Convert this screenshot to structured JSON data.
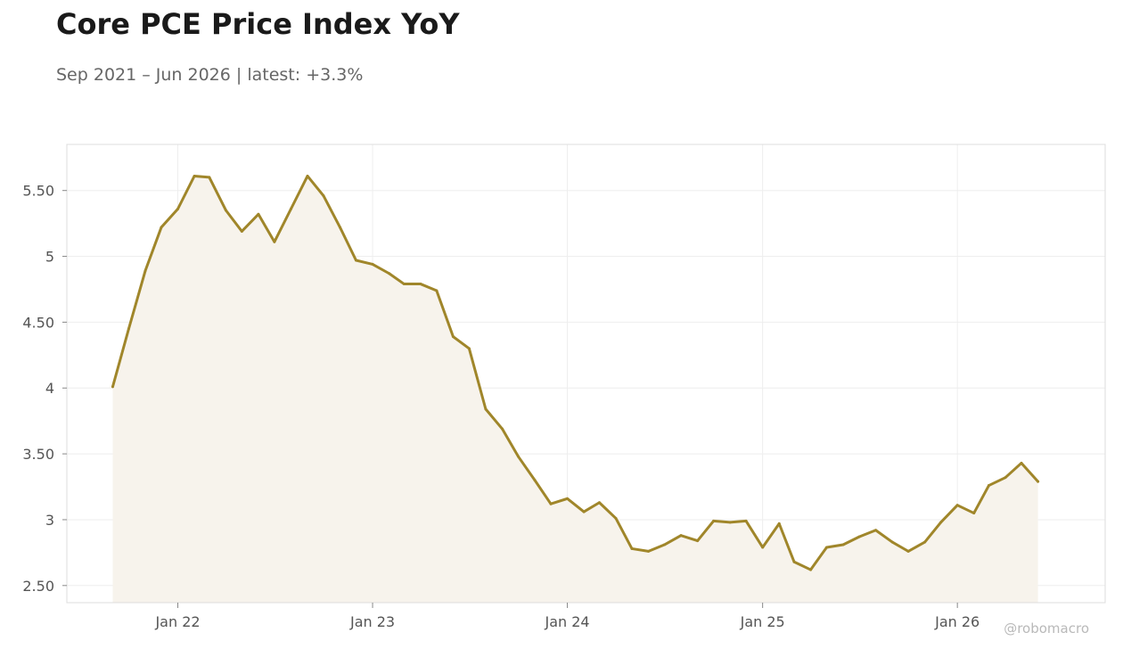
{
  "title": "Core PCE Price Index YoY",
  "subtitle": "Sep 2021 – Jun 2026 | latest: +3.3%",
  "credit": "@robomacro",
  "colors": {
    "line": "#a0862a",
    "fill": "#f7f3ec",
    "grid": "#eeeeee",
    "frame": "#dddddd"
  },
  "chart_data": {
    "type": "area",
    "title": "Core PCE Price Index YoY",
    "xlabel": "",
    "ylabel": "",
    "ylim": [
      2.37,
      5.85
    ],
    "xlim": [
      "2021-06-07",
      "2026-10-05"
    ],
    "grid": true,
    "legend": "none",
    "yticks": [
      2.5,
      3,
      3.5,
      4,
      4.5,
      5,
      5.5
    ],
    "ytick_labels": [
      "2.50",
      "3",
      "3.50",
      "4",
      "4.50",
      "5",
      "5.50"
    ],
    "xticks": [
      "2022-01-01",
      "2023-01-01",
      "2024-01-01",
      "2025-01-01",
      "2026-01-01"
    ],
    "xtick_labels": [
      "Jan 22",
      "Jan 23",
      "Jan 24",
      "Jan 25",
      "Jan 26"
    ],
    "series": [
      {
        "x": [
          "2021-09",
          "2021-10",
          "2021-11",
          "2021-12",
          "2022-01",
          "2022-02",
          "2022-03",
          "2022-04",
          "2022-05",
          "2022-06",
          "2022-07",
          "2022-08",
          "2022-09",
          "2022-10",
          "2022-11",
          "2022-12",
          "2023-01",
          "2023-02",
          "2023-03",
          "2023-04",
          "2023-05",
          "2023-06",
          "2023-07",
          "2023-08",
          "2023-09",
          "2023-10",
          "2023-11",
          "2023-12",
          "2024-01",
          "2024-02",
          "2024-03",
          "2024-04",
          "2024-05",
          "2024-06",
          "2024-07",
          "2024-08",
          "2024-09",
          "2024-10",
          "2024-11",
          "2024-12",
          "2025-01",
          "2025-02",
          "2025-03",
          "2025-04",
          "2025-05",
          "2025-06",
          "2025-07",
          "2025-08",
          "2025-09",
          "2025-10",
          "2025-11",
          "2025-12",
          "2026-01",
          "2026-02",
          "2026-03",
          "2026-04",
          "2026-05",
          "2026-06"
        ],
        "values": [
          4.01,
          4.45,
          4.89,
          5.22,
          5.36,
          5.61,
          5.6,
          5.35,
          5.19,
          5.32,
          5.11,
          5.36,
          5.61,
          5.46,
          5.22,
          4.97,
          4.94,
          4.87,
          4.79,
          4.79,
          4.74,
          4.39,
          4.3,
          3.84,
          3.69,
          3.48,
          3.3,
          3.12,
          3.16,
          3.06,
          3.13,
          3.01,
          2.78,
          2.76,
          2.81,
          2.88,
          2.84,
          2.99,
          2.98,
          2.99,
          2.79,
          2.97,
          2.68,
          2.62,
          2.79,
          2.81,
          2.87,
          2.92,
          2.83,
          2.76,
          2.83,
          2.98,
          3.11,
          3.05,
          3.26,
          3.32,
          3.43,
          3.29
        ]
      }
    ]
  }
}
